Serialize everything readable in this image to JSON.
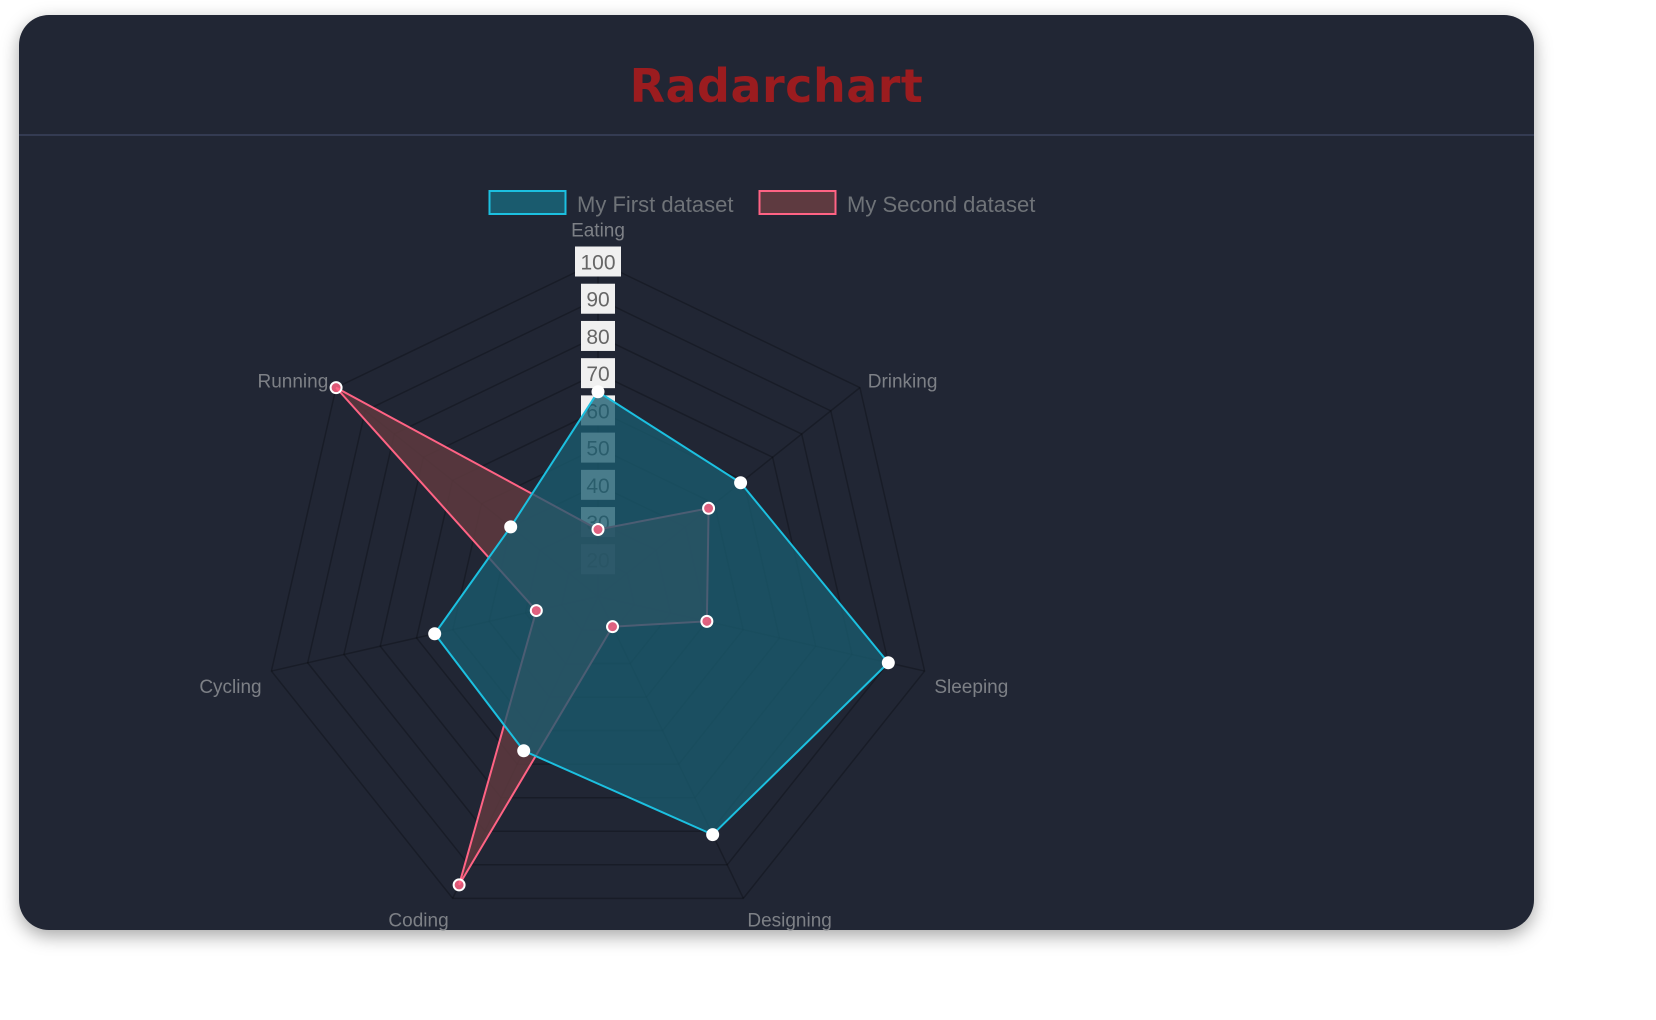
{
  "header": {
    "title": "Radarchart"
  },
  "chart_data": {
    "type": "radar",
    "labels": [
      "Eating",
      "Drinking",
      "Sleeping",
      "Designing",
      "Coding",
      "Cycling",
      "Running"
    ],
    "series": [
      {
        "name": "My First dataset",
        "values": [
          65,
          59,
          90,
          81,
          56,
          55,
          40
        ],
        "stroke": "#1cc0e0",
        "fill": "#1a5b6e",
        "point_fill": "#ffffff"
      },
      {
        "name": "My Second dataset",
        "values": [
          28,
          48,
          40,
          19,
          96,
          27,
          100
        ],
        "stroke": "#ff6384",
        "fill": "#5e3a40",
        "point_fill": "#ff6384"
      }
    ],
    "scale": {
      "min": 10,
      "max": 100,
      "step": 10,
      "tick_labels": [
        "20",
        "30",
        "40",
        "50",
        "60",
        "70",
        "80",
        "90",
        "100"
      ]
    },
    "legend": "top",
    "grid": true
  }
}
